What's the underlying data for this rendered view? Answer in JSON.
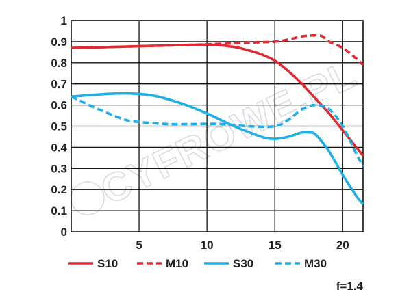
{
  "chart_data": {
    "type": "line",
    "title": "",
    "xlabel": "",
    "ylabel": "",
    "xlim": [
      0,
      21.5
    ],
    "ylim": [
      0,
      1
    ],
    "x_ticks": [
      {
        "value": 5,
        "label": "5"
      },
      {
        "value": 10,
        "label": "10"
      },
      {
        "value": 15,
        "label": "15"
      },
      {
        "value": 20,
        "label": "20"
      }
    ],
    "y_ticks": [
      {
        "value": 0,
        "label": "0"
      },
      {
        "value": 0.1,
        "label": "0.1"
      },
      {
        "value": 0.2,
        "label": "0.2"
      },
      {
        "value": 0.3,
        "label": "0.3"
      },
      {
        "value": 0.4,
        "label": "0.4"
      },
      {
        "value": 0.5,
        "label": "0.5"
      },
      {
        "value": 0.6,
        "label": "0.6"
      },
      {
        "value": 0.7,
        "label": "0.7"
      },
      {
        "value": 0.8,
        "label": "0.8"
      },
      {
        "value": 0.9,
        "label": "0.9"
      },
      {
        "value": 1,
        "label": "1"
      }
    ],
    "grid": true,
    "legend_position": "bottom",
    "series": [
      {
        "name": "S10",
        "color": "#e02a32",
        "dash": "solid",
        "x": [
          0,
          3,
          6,
          9,
          10.5,
          12,
          13,
          14,
          15,
          16,
          17,
          18,
          19,
          20,
          21,
          21.5
        ],
        "y": [
          0.87,
          0.875,
          0.88,
          0.885,
          0.885,
          0.875,
          0.86,
          0.84,
          0.81,
          0.76,
          0.7,
          0.63,
          0.56,
          0.48,
          0.4,
          0.36
        ]
      },
      {
        "name": "M10",
        "color": "#e02a32",
        "dash": "dashed",
        "x": [
          0,
          3,
          6,
          9,
          11,
          13,
          15,
          16,
          17,
          18,
          18.5,
          19,
          20,
          21,
          21.5
        ],
        "y": [
          0.87,
          0.875,
          0.88,
          0.885,
          0.89,
          0.895,
          0.9,
          0.91,
          0.925,
          0.93,
          0.925,
          0.9,
          0.87,
          0.82,
          0.79
        ]
      },
      {
        "name": "S30",
        "color": "#1eaee8",
        "dash": "solid",
        "x": [
          0,
          2,
          4,
          6,
          8,
          10,
          12,
          14,
          15,
          16,
          17,
          17.5,
          18,
          19,
          20,
          21,
          21.5
        ],
        "y": [
          0.64,
          0.65,
          0.655,
          0.645,
          0.61,
          0.56,
          0.5,
          0.45,
          0.44,
          0.45,
          0.47,
          0.47,
          0.46,
          0.38,
          0.27,
          0.17,
          0.13
        ]
      },
      {
        "name": "M30",
        "color": "#1eaee8",
        "dash": "dashed",
        "x": [
          0,
          2,
          4,
          5,
          7,
          9,
          11,
          13,
          15,
          16,
          17,
          18,
          19,
          20,
          21,
          21.5
        ],
        "y": [
          0.64,
          0.58,
          0.53,
          0.52,
          0.51,
          0.51,
          0.51,
          0.5,
          0.5,
          0.53,
          0.58,
          0.6,
          0.58,
          0.5,
          0.37,
          0.31
        ]
      }
    ]
  },
  "annotation": "f=1.4",
  "watermark": "CYFROWE.PL"
}
